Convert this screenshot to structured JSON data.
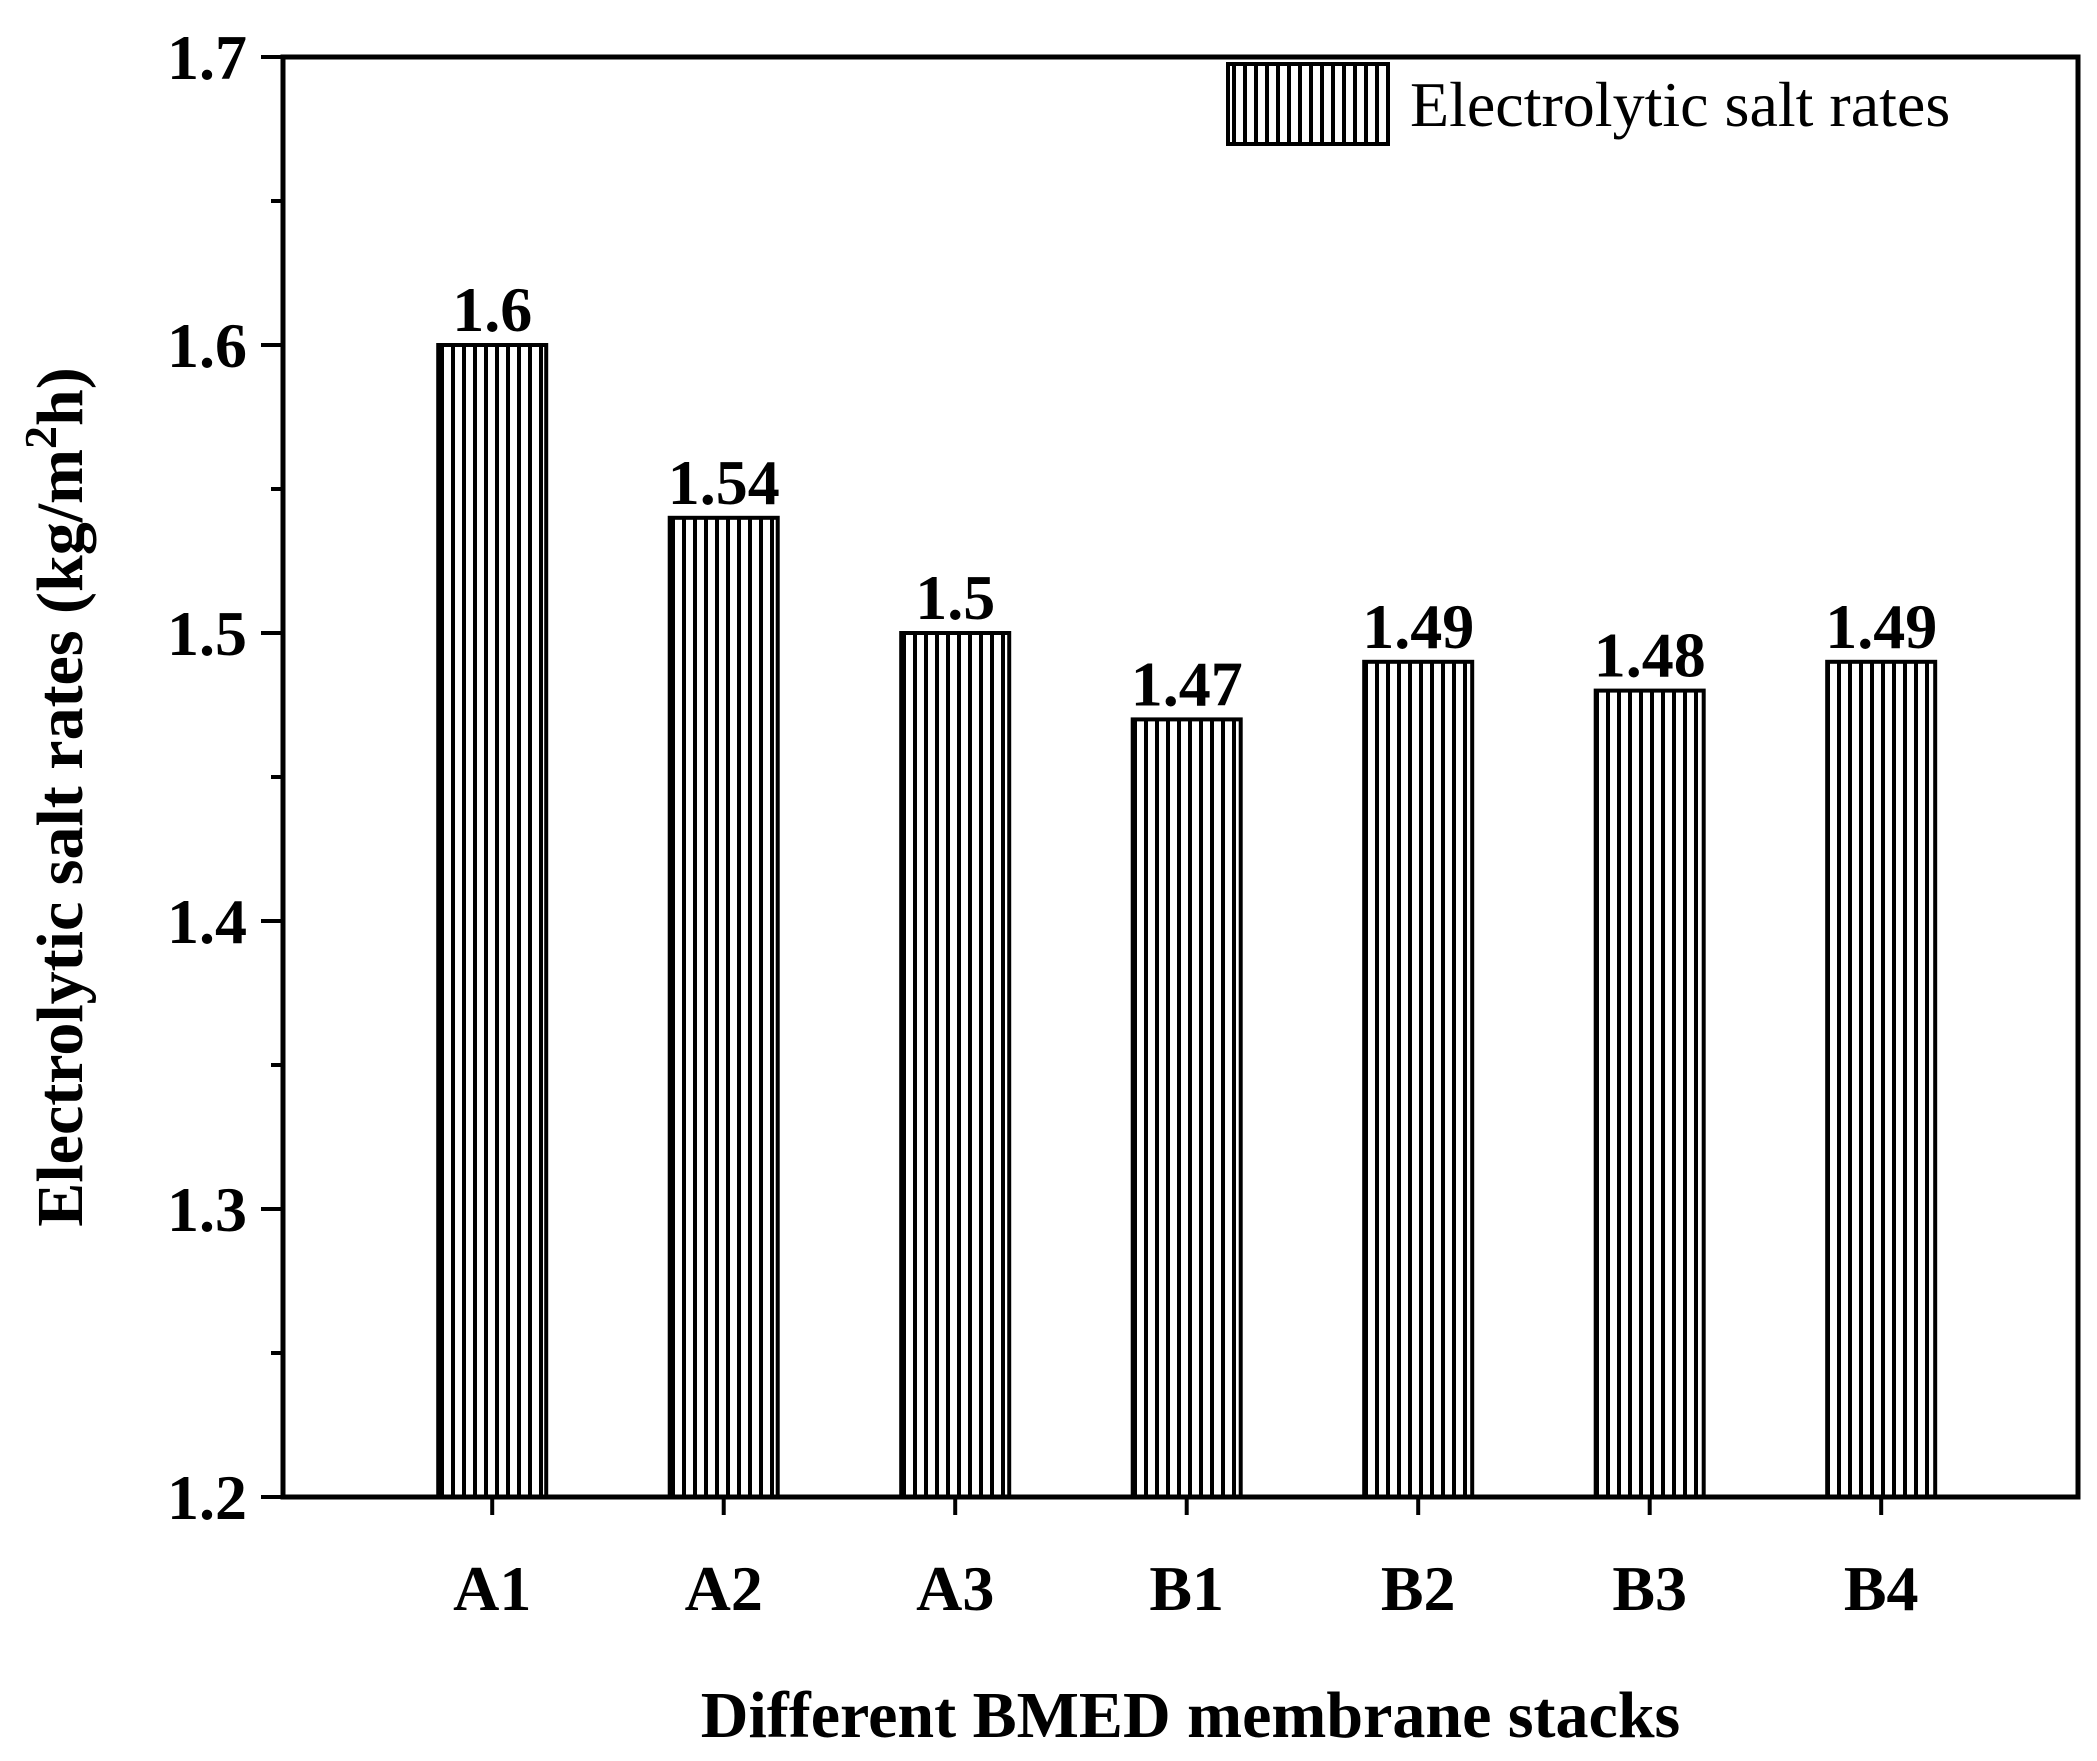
{
  "chart_data": {
    "type": "bar",
    "categories": [
      "A1",
      "A2",
      "A3",
      "B1",
      "B2",
      "B3",
      "B4"
    ],
    "series": [
      {
        "name": "Electrolytic salt rates",
        "values": [
          1.6,
          1.54,
          1.5,
          1.47,
          1.49,
          1.48,
          1.49
        ]
      }
    ],
    "value_labels": [
      "1.6",
      "1.54",
      "1.5",
      "1.47",
      "1.49",
      "1.48",
      "1.49"
    ],
    "xlabel": "Different BMED membrane stacks",
    "ylabel": {
      "prefix": "Electrolytic salt rates (kg/m",
      "superscript": "2",
      "suffix": "h)"
    },
    "ylim": [
      1.2,
      1.7
    ],
    "yticks": [
      "1.2",
      "1.3",
      "1.4",
      "1.5",
      "1.6",
      "1.7"
    ],
    "grid": false,
    "legend_position": "top-right",
    "bar_fill": "vertical-hatch",
    "colors": {
      "ink": "#000000",
      "background": "#ffffff"
    }
  }
}
